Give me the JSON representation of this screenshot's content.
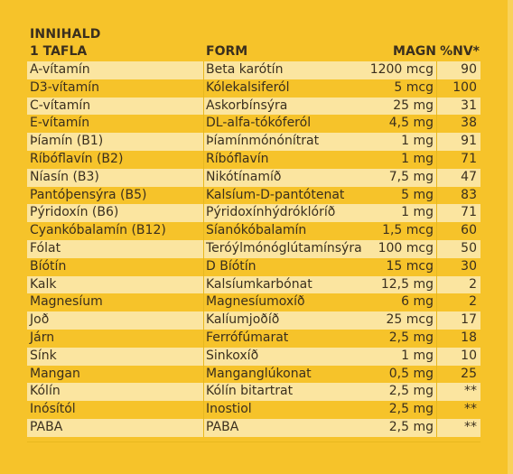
{
  "title": "INNIHALD",
  "header": {
    "dose": "1 TAFLA",
    "form": "FORM",
    "amount": "MAGN",
    "nv": "%NV*"
  },
  "rows": [
    {
      "name": "A-vítamín",
      "form": "Beta karótín",
      "amount": "1200 mcg",
      "nv": "90"
    },
    {
      "name": "D3-vítamín",
      "form": "Kólekalsiferól",
      "amount": "5 mcg",
      "nv": "100"
    },
    {
      "name": "C-vítamín",
      "form": "Askorbínsýra",
      "amount": "25 mg",
      "nv": "31"
    },
    {
      "name": "E-vítamín",
      "form": "DL-alfa-tókóferól",
      "amount": "4,5 mg",
      "nv": "38"
    },
    {
      "name": "Þíamín (B1)",
      "form": "Þíamínmónónítrat",
      "amount": "1 mg",
      "nv": "91"
    },
    {
      "name": "Ríbóflavín (B2)",
      "form": "Ríbóflavín",
      "amount": "1 mg",
      "nv": "71"
    },
    {
      "name": "Níasín (B3)",
      "form": "Nikótínamíð",
      "amount": "7,5 mg",
      "nv": "47"
    },
    {
      "name": "Pantóþensýra (B5)",
      "form": "Kalsíum-D-pantótenat",
      "amount": "5 mg",
      "nv": "83"
    },
    {
      "name": "Pýridoxín (B6)",
      "form": "Pýridoxínhýdróklóríð",
      "amount": "1 mg",
      "nv": "71"
    },
    {
      "name": "Cyankóbalamín (B12)",
      "form": "Síanókóbalamín",
      "amount": "1,5 mcg",
      "nv": "60"
    },
    {
      "name": "Fólat",
      "form": "Teróýlmónóglútamínsýra",
      "amount": "100 mcg",
      "nv": "50"
    },
    {
      "name": "Bíótín",
      "form": "D Bíótín",
      "amount": "15 mcg",
      "nv": "30"
    },
    {
      "name": "Kalk",
      "form": "Kalsíumkarbónat",
      "amount": "12,5 mg",
      "nv": "2"
    },
    {
      "name": "Magnesíum",
      "form": "Magnesíumoxíð",
      "amount": "6 mg",
      "nv": "2"
    },
    {
      "name": "Joð",
      "form": "Kalíumjoðíð",
      "amount": "25 mcg",
      "nv": "17"
    },
    {
      "name": "Járn",
      "form": "Ferrófúmarat",
      "amount": "2,5 mg",
      "nv": "18"
    },
    {
      "name": "Sínk",
      "form": "Sinkoxíð",
      "amount": "1 mg",
      "nv": "10"
    },
    {
      "name": "Mangan",
      "form": "Manganglúkonat",
      "amount": "0,5 mg",
      "nv": "25"
    },
    {
      "name": "Kólín",
      "form": "Kólín bitartrat",
      "amount": "2,5 mg",
      "nv": "**"
    },
    {
      "name": "Inósítól",
      "form": "Inostiol",
      "amount": "2,5 mg",
      "nv": "**"
    },
    {
      "name": "PABA",
      "form": "PABA",
      "amount": "2,5 mg",
      "nv": "**"
    }
  ],
  "colors": {
    "background": "#f6c32a",
    "row_light": "#fbe5a0",
    "text": "#3a2f1e"
  }
}
